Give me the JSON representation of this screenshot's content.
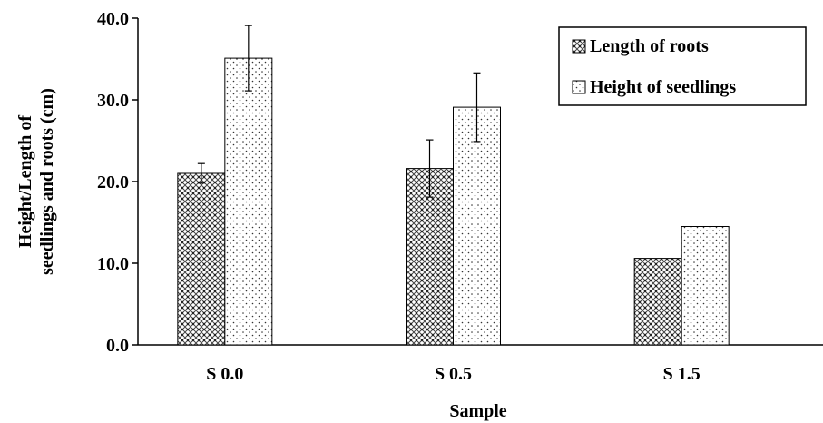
{
  "chart_data": {
    "type": "bar",
    "title": "",
    "xlabel": "Sample",
    "ylabel_lines": [
      "Height/Length of",
      "seedlings and roots (cm)"
    ],
    "categories": [
      "S 0.0",
      "S 0.5",
      "S 1.5"
    ],
    "ylim": [
      0,
      40
    ],
    "yticks": [
      "0.0",
      "10.0",
      "20.0",
      "30.0",
      "40.0"
    ],
    "grid": false,
    "legend_position": "top-right",
    "series": [
      {
        "name": "Length of roots",
        "pattern": "crosshatch",
        "values": [
          21.0,
          21.6,
          10.6
        ],
        "errors": [
          1.2,
          3.5,
          0
        ]
      },
      {
        "name": "Height of seedlings",
        "pattern": "dots",
        "values": [
          35.1,
          29.1,
          14.5
        ],
        "errors": [
          4.0,
          4.2,
          0
        ]
      }
    ]
  }
}
